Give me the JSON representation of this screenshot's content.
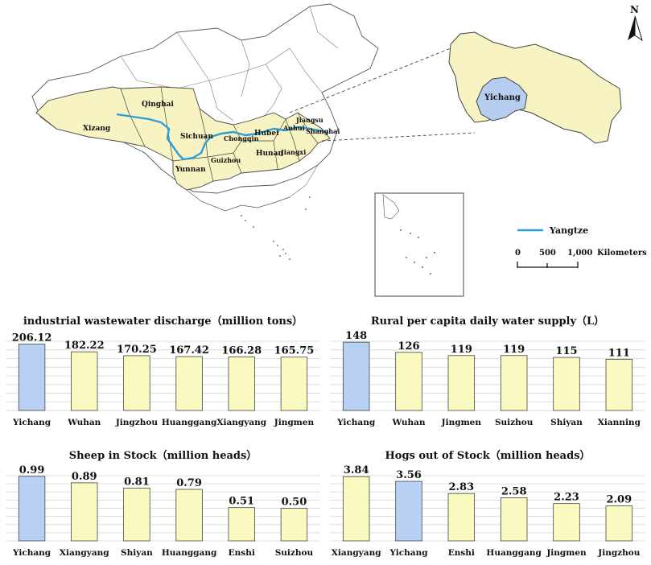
{
  "map": {
    "north_label": "N",
    "inset_label": "Yichang",
    "province_labels": [
      {
        "name": "Qinghai"
      },
      {
        "name": "Xizang"
      },
      {
        "name": "Sichuan"
      },
      {
        "name": "Chongqin"
      },
      {
        "name": "Hubei"
      },
      {
        "name": "Anhui"
      },
      {
        "name": "Jiangsu"
      },
      {
        "name": "Shanghai"
      },
      {
        "name": "Hunan"
      },
      {
        "name": "Jiangxi"
      },
      {
        "name": "Guizhou"
      },
      {
        "name": "Yunnan"
      }
    ],
    "legend": {
      "line_label": "Yangtze",
      "line_color": "#2b9fd9"
    },
    "scale_bar": {
      "ticks": [
        "0",
        "500",
        "1,000"
      ],
      "unit": "Kilometers"
    },
    "colors": {
      "highlight_provinces": "#f7f3c2",
      "yichang": "#b7cdf0",
      "borders": "#555555"
    }
  },
  "chart_data": [
    {
      "type": "bar",
      "title": "industrial wastewater discharge（million tons）",
      "categories": [
        "Yichang",
        "Wuhan",
        "Jingzhou",
        "Huanggang",
        "Xiangyang",
        "Jingmen"
      ],
      "values": [
        206.12,
        182.22,
        170.25,
        167.42,
        166.28,
        165.75
      ],
      "value_labels": [
        "206.12",
        "182.22",
        "170.25",
        "167.42",
        "166.28",
        "165.75"
      ],
      "highlight": [
        "Yichang"
      ],
      "ylim": [
        0,
        215
      ],
      "grid": true
    },
    {
      "type": "bar",
      "title": "Rural per capita daily water supply（L）",
      "categories": [
        "Yichang",
        "Wuhan",
        "Jingmen",
        "Suizhou",
        "Shiyan",
        "Xianning"
      ],
      "values": [
        148,
        126,
        119,
        119,
        115,
        111
      ],
      "value_labels": [
        "148",
        "126",
        "119",
        "119",
        "115",
        "111"
      ],
      "highlight": [
        "Yichang"
      ],
      "ylim": [
        0,
        150
      ],
      "grid": true
    },
    {
      "type": "bar",
      "title": "Sheep in Stock（million heads）",
      "categories": [
        "Yichang",
        "Xiangyang",
        "Shiyan",
        "Huanggang",
        "Enshi",
        "Suizhou"
      ],
      "values": [
        0.99,
        0.89,
        0.81,
        0.79,
        0.51,
        0.5
      ],
      "value_labels": [
        "0.99",
        "0.89",
        "0.81",
        "0.79",
        "0.51",
        "0.50"
      ],
      "highlight": [
        "Yichang"
      ],
      "ylim": [
        0,
        1.0
      ],
      "grid": true
    },
    {
      "type": "bar",
      "title": "Hogs out of Stock（million heads）",
      "categories": [
        "Xiangyang",
        "Yichang",
        "Enshi",
        "Huanggang",
        "Jingmen",
        "Jingzhou"
      ],
      "values": [
        3.84,
        3.56,
        2.83,
        2.58,
        2.23,
        2.09
      ],
      "value_labels": [
        "3.84",
        "3.56",
        "2.83",
        "2.58",
        "2.23",
        "2.09"
      ],
      "highlight": [
        "Yichang"
      ],
      "ylim": [
        0,
        3.9
      ],
      "grid": true
    }
  ],
  "bar_colors": {
    "default": "#fafac0",
    "highlight": "#b9d0f5",
    "grid": "#dddddd",
    "edge": "#444444"
  }
}
